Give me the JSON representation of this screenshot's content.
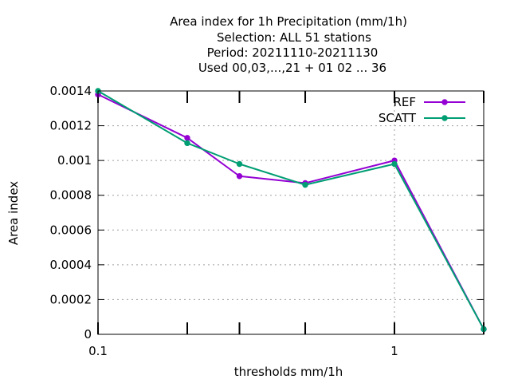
{
  "chart_data": {
    "type": "line",
    "title_lines": [
      "Area index  for 1h Precipitation (mm/1h)",
      "Selection: ALL     51 stations",
      "Period: 20211110-20211130",
      "Used  00,03,...,21  + 01 02 ... 36"
    ],
    "xlabel": "thresholds mm/1h",
    "ylabel": "Area index",
    "x_scale": "log",
    "x_tick_labels": [
      {
        "value": 0.1,
        "label": "0.1"
      },
      {
        "value": 1,
        "label": "1"
      }
    ],
    "x_minor_ticks": [
      0.2,
      0.3,
      0.5,
      2
    ],
    "xlim": [
      0.1,
      2
    ],
    "ylim": [
      0,
      0.0014
    ],
    "y_ticks": [
      0,
      0.0002,
      0.0004,
      0.0006,
      0.0008,
      0.001,
      0.0012,
      0.0014
    ],
    "y_tick_labels": [
      "0",
      "0.0002",
      "0.0004",
      "0.0006",
      "0.0008",
      "0.001",
      "0.0012",
      "0.0014"
    ],
    "grid": true,
    "legend_position": "top-right",
    "x": [
      0.1,
      0.2,
      0.3,
      0.5,
      1,
      2
    ],
    "series": [
      {
        "name": "REF",
        "color": "#9400d3",
        "values": [
          0.00138,
          0.00113,
          0.00091,
          0.00087,
          0.001,
          3e-05
        ]
      },
      {
        "name": "SCATT",
        "color": "#009e73",
        "values": [
          0.0014,
          0.0011,
          0.00098,
          0.00086,
          0.00098,
          3e-05
        ]
      }
    ]
  }
}
